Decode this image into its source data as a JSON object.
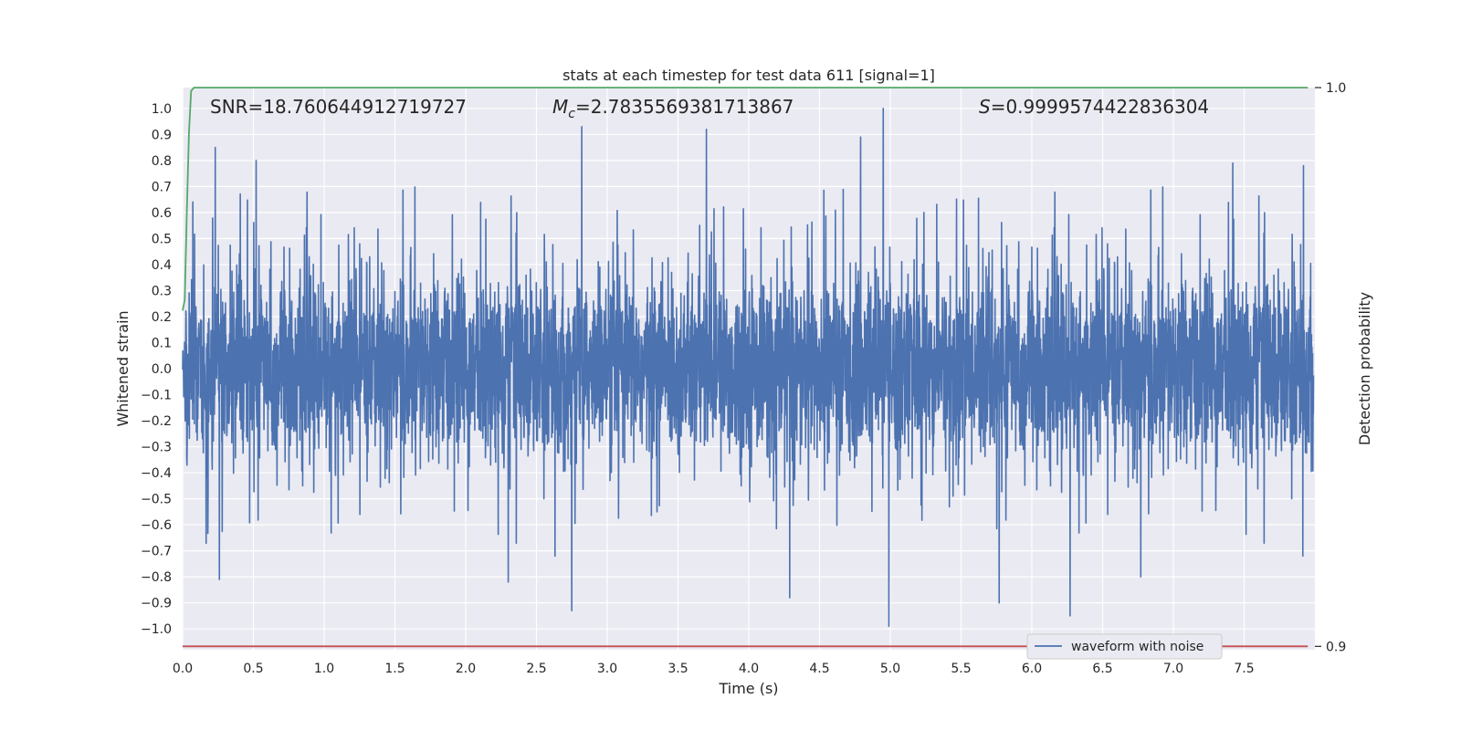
{
  "chart_data": {
    "type": "line",
    "title": "stats at each timestep for test data 611 [signal=1]",
    "xlabel": "Time (s)",
    "ylabel": "Whitened strain",
    "y2label": "Detection probability",
    "xlim": [
      0.0,
      8.0
    ],
    "ylim": [
      -1.08,
      1.08
    ],
    "y2lim": [
      0.8994,
      1.0
    ],
    "grid": true,
    "x_ticks": [
      "0.0",
      "0.5",
      "1.0",
      "1.5",
      "2.0",
      "2.5",
      "3.0",
      "3.5",
      "4.0",
      "4.5",
      "5.0",
      "5.5",
      "6.0",
      "6.5",
      "7.0",
      "7.5"
    ],
    "y_ticks": [
      "1.0",
      "0.9",
      "0.8",
      "0.7",
      "0.6",
      "0.5",
      "0.4",
      "0.3",
      "0.2",
      "0.1",
      "0.0",
      "−0.1",
      "−0.2",
      "−0.3",
      "−0.4",
      "−0.5",
      "−0.6",
      "−0.7",
      "−0.8",
      "−0.9",
      "−1.0"
    ],
    "y2_ticks": [
      "1.0",
      "0.9"
    ],
    "annotations": {
      "snr": "SNR=18.760644912719727",
      "mc_symbol": "M",
      "mc_subscript": "c",
      "mc_value": "=2.7835569381713867",
      "s_symbol": "S",
      "s_value": "=0.9999574422836304"
    },
    "legend": {
      "position": "bottom-right",
      "label": "waveform with noise"
    },
    "series": [
      {
        "name": "waveform with noise",
        "color": "#4c72b0",
        "axis": "left",
        "x_range": [
          0.0,
          8.0
        ],
        "amplitude_envelope": [
          -0.99,
          1.0
        ],
        "notable_peaks": [
          {
            "x": 0.23,
            "y": 0.85
          },
          {
            "x": 0.52,
            "y": 0.8
          },
          {
            "x": 2.82,
            "y": 0.93
          },
          {
            "x": 3.7,
            "y": 0.92
          },
          {
            "x": 4.79,
            "y": 0.89
          },
          {
            "x": 4.95,
            "y": 1.0
          },
          {
            "x": 7.42,
            "y": 0.79
          },
          {
            "x": 7.92,
            "y": 0.78
          }
        ],
        "notable_troughs": [
          {
            "x": 0.26,
            "y": -0.81
          },
          {
            "x": 2.3,
            "y": -0.82
          },
          {
            "x": 2.75,
            "y": -0.93
          },
          {
            "x": 4.29,
            "y": -0.88
          },
          {
            "x": 4.99,
            "y": -0.99
          },
          {
            "x": 5.77,
            "y": -0.9
          },
          {
            "x": 6.27,
            "y": -0.95
          },
          {
            "x": 6.77,
            "y": -0.8
          }
        ]
      },
      {
        "name": "",
        "color": "#55a868",
        "axis": "right",
        "x": [
          0.0,
          0.015,
          0.03,
          0.045,
          0.06,
          0.08,
          7.95
        ],
        "y": [
          0.9601,
          0.962,
          0.978,
          0.992,
          0.9994,
          1.0,
          1.0
        ]
      },
      {
        "name": "",
        "color": "#c44e52",
        "axis": "right",
        "x": [
          0.0,
          7.95
        ],
        "y": [
          0.9,
          0.9
        ]
      }
    ]
  }
}
